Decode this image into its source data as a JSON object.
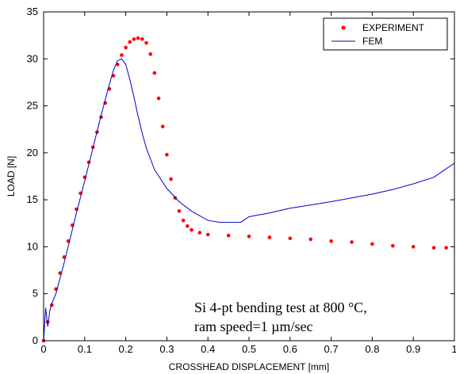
{
  "chart_data": {
    "type": "line",
    "title": "",
    "xlabel": "CROSSHEAD DISPLACEMENT [mm]",
    "ylabel": "LOAD [N]",
    "xlim": [
      0,
      1
    ],
    "ylim": [
      0,
      35
    ],
    "xticks": [
      "0",
      "0.1",
      "0.2",
      "0.3",
      "0.4",
      "0.5",
      "0.6",
      "0.7",
      "0.8",
      "0.9",
      "1"
    ],
    "yticks": [
      "0",
      "5",
      "10",
      "15",
      "20",
      "25",
      "30",
      "35"
    ],
    "grid": false,
    "legend": "top-right",
    "annotation_lines": [
      "Si 4-pt bending test at 800 °C,",
      "ram speed=1 µm/sec"
    ],
    "series": [
      {
        "name": "EXPERIMENT",
        "style": "dots",
        "color": "#ff0000",
        "x": [
          0,
          0.01,
          0.02,
          0.03,
          0.04,
          0.05,
          0.06,
          0.07,
          0.08,
          0.09,
          0.1,
          0.11,
          0.12,
          0.13,
          0.14,
          0.15,
          0.16,
          0.17,
          0.18,
          0.19,
          0.2,
          0.21,
          0.22,
          0.23,
          0.24,
          0.25,
          0.26,
          0.27,
          0.28,
          0.29,
          0.3,
          0.31,
          0.32,
          0.33,
          0.34,
          0.35,
          0.36,
          0.38,
          0.4,
          0.45,
          0.5,
          0.55,
          0.6,
          0.65,
          0.7,
          0.75,
          0.8,
          0.85,
          0.9,
          0.95,
          0.98
        ],
        "y": [
          0,
          2,
          3.8,
          5.5,
          7.2,
          8.9,
          10.6,
          12.3,
          14.0,
          15.7,
          17.4,
          19.0,
          20.6,
          22.2,
          23.8,
          25.3,
          26.8,
          28.2,
          29.4,
          30.4,
          31.2,
          31.8,
          32.1,
          32.2,
          32.1,
          31.7,
          30.5,
          28.5,
          25.8,
          22.8,
          19.8,
          17.2,
          15.2,
          13.8,
          12.8,
          12.2,
          11.8,
          11.5,
          11.3,
          11.2,
          11.1,
          11.0,
          10.9,
          10.8,
          10.6,
          10.5,
          10.3,
          10.1,
          10.0,
          9.9,
          9.9
        ]
      },
      {
        "name": "FEM",
        "style": "line",
        "color": "#0000cc",
        "x": [
          0,
          0.005,
          0.01,
          0.015,
          0.02,
          0.03,
          0.05,
          0.08,
          0.1,
          0.12,
          0.14,
          0.16,
          0.17,
          0.18,
          0.19,
          0.2,
          0.21,
          0.22,
          0.23,
          0.24,
          0.25,
          0.27,
          0.3,
          0.33,
          0.36,
          0.4,
          0.43,
          0.46,
          0.48,
          0.5,
          0.55,
          0.6,
          0.7,
          0.8,
          0.85,
          0.9,
          0.95,
          0.97,
          1.0
        ],
        "y": [
          0,
          3.5,
          1.5,
          3.2,
          4.0,
          5.0,
          8.3,
          13.6,
          17.0,
          20.5,
          24.0,
          27.3,
          28.8,
          29.8,
          30.0,
          29.4,
          27.8,
          25.9,
          23.9,
          22.1,
          20.5,
          18.2,
          16.2,
          14.8,
          13.8,
          12.8,
          12.6,
          12.6,
          12.6,
          13.2,
          13.6,
          14.1,
          14.8,
          15.6,
          16.1,
          16.7,
          17.4,
          18.0,
          18.9
        ]
      }
    ]
  }
}
